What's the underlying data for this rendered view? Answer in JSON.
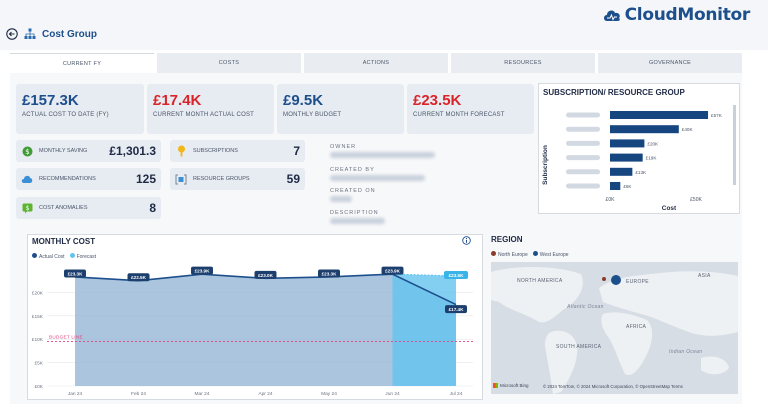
{
  "brand": {
    "name": "CloudMonitor"
  },
  "header": {
    "title": "Cost Group"
  },
  "tabs": [
    "CURRENT FY",
    "COSTS",
    "ACTIONS",
    "RESOURCES",
    "GOVERNANCE"
  ],
  "kpis": [
    {
      "value": "£157.3K",
      "label": "ACTUAL COST TO DATE (FY)",
      "color": "#1d4f8c"
    },
    {
      "value": "£17.4K",
      "label": "CURRENT MONTH ACTUAL COST",
      "color": "#d9252a"
    },
    {
      "value": "£9.5K",
      "label": "MONTHLY BUDGET",
      "color": "#1d4f8c"
    },
    {
      "value": "£23.5K",
      "label": "CURRENT MONTH FORECAST",
      "color": "#d9252a"
    }
  ],
  "stats": {
    "monthly_saving": {
      "label": "MONTHLY SAVING",
      "value": "£1,301.3"
    },
    "recommendations": {
      "label": "RECOMMENDATIONS",
      "value": "125"
    },
    "cost_anomalies": {
      "label": "COST ANOMALIES",
      "value": "8"
    },
    "subscriptions": {
      "label": "SUBSCRIPTIONS",
      "value": "7"
    },
    "resource_groups": {
      "label": "RESOURCE GROUPS",
      "value": "59"
    }
  },
  "meta": {
    "owner": "OWNER",
    "created_by": "CREATED BY",
    "created_on": "CREATED ON",
    "description": "DESCRIPTION"
  },
  "subscription_panel": {
    "title": "SUBSCRIPTION/ RESOURCE GROUP",
    "ylabel": "Subscription",
    "xlabel": "Cost",
    "ticks": [
      "£0K",
      "£50K"
    ]
  },
  "monthly_panel": {
    "title": "MONTHLY COST",
    "legend": [
      "Actual Cost",
      "Forecast"
    ],
    "budget_label": "BUDGET LINE"
  },
  "region_panel": {
    "title": "REGION",
    "legend": [
      "North Europe",
      "West Europe"
    ],
    "labels": {
      "north_america": "NORTH AMERICA",
      "europe": "EUROPE",
      "asia": "ASIA",
      "africa": "AFRICA",
      "south_america": "SOUTH AMERICA",
      "atlantic": "Atlantic Ocean",
      "indian": "Indian Ocean"
    },
    "attribution": "© 2024 TomTom, © 2024 Microsoft Corporation, © OpenStreetMap  Terms",
    "bing": "Microsoft Bing"
  },
  "colors": {
    "accent": "#1d4f8c",
    "red": "#d9252a",
    "bar": "#15467f",
    "area": "#8fb2d3",
    "forecast": "#63c3ef"
  },
  "chart_data": [
    {
      "type": "bar",
      "title": "SUBSCRIPTION/ RESOURCE GROUP",
      "ylabel": "Subscription",
      "xlabel": "Cost",
      "categories": [
        "",
        "",
        "",
        "",
        "",
        ""
      ],
      "values": [
        57,
        40,
        20,
        19,
        13,
        6
      ],
      "data_labels": [
        "£57K",
        "£40K",
        "£20K",
        "£19K",
        "£13K",
        "£6K"
      ],
      "xlim": [
        0,
        65
      ]
    },
    {
      "type": "area",
      "title": "MONTHLY COST",
      "categories": [
        "Jan 24",
        "Feb 24",
        "Mar 24",
        "Apr 24",
        "May 24",
        "Jun 24",
        "Jul 24"
      ],
      "series": [
        {
          "name": "Actual Cost",
          "values": [
            23.3,
            22.5,
            23.9,
            23.0,
            23.3,
            23.9,
            17.4
          ],
          "labels": [
            "£23.3K",
            "£22.5K",
            "£23.9K",
            "£23.0K",
            "£23.3K",
            "£23.9K",
            "£17.4K"
          ]
        },
        {
          "name": "Forecast",
          "values": [
            null,
            null,
            null,
            null,
            null,
            23.9,
            23.5
          ],
          "labels": [
            "",
            "",
            "",
            "",
            "",
            "",
            "£23.5K"
          ]
        }
      ],
      "budget": 9.5,
      "yticks": [
        "£0K",
        "£5K",
        "£10K",
        "£15K",
        "£20K"
      ],
      "ylim": [
        0,
        25
      ],
      "legend": "top-left"
    }
  ]
}
